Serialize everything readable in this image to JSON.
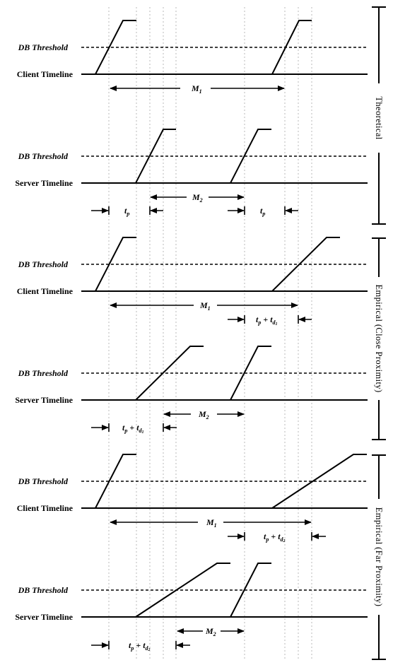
{
  "labels": {
    "db_threshold": "DB Threshold",
    "client_timeline": "Client Timeline",
    "server_timeline": "Server Timeline"
  },
  "sections": {
    "theoretical": "Theoretical",
    "empirical_close": "Empirical (Close Proximity)",
    "empirical_far": "Empirical (Far Proximity)"
  },
  "measures": {
    "m1": {
      "base": "M",
      "sub": "1"
    },
    "m2": {
      "base": "M",
      "sub": "2"
    },
    "tp": {
      "base": "t",
      "sub": "p"
    },
    "tp_td1": {
      "t1": "t",
      "s1": "p",
      "plus": " + ",
      "t2": "t",
      "s2": "d",
      "s3": "1"
    },
    "tp_td2": {
      "t1": "t",
      "s1": "p",
      "plus": " + ",
      "t2": "t",
      "s2": "d",
      "s3": "2"
    }
  },
  "colors": {
    "ink": "#000000",
    "grid": "#b8b8b8",
    "background": "#ffffff"
  }
}
